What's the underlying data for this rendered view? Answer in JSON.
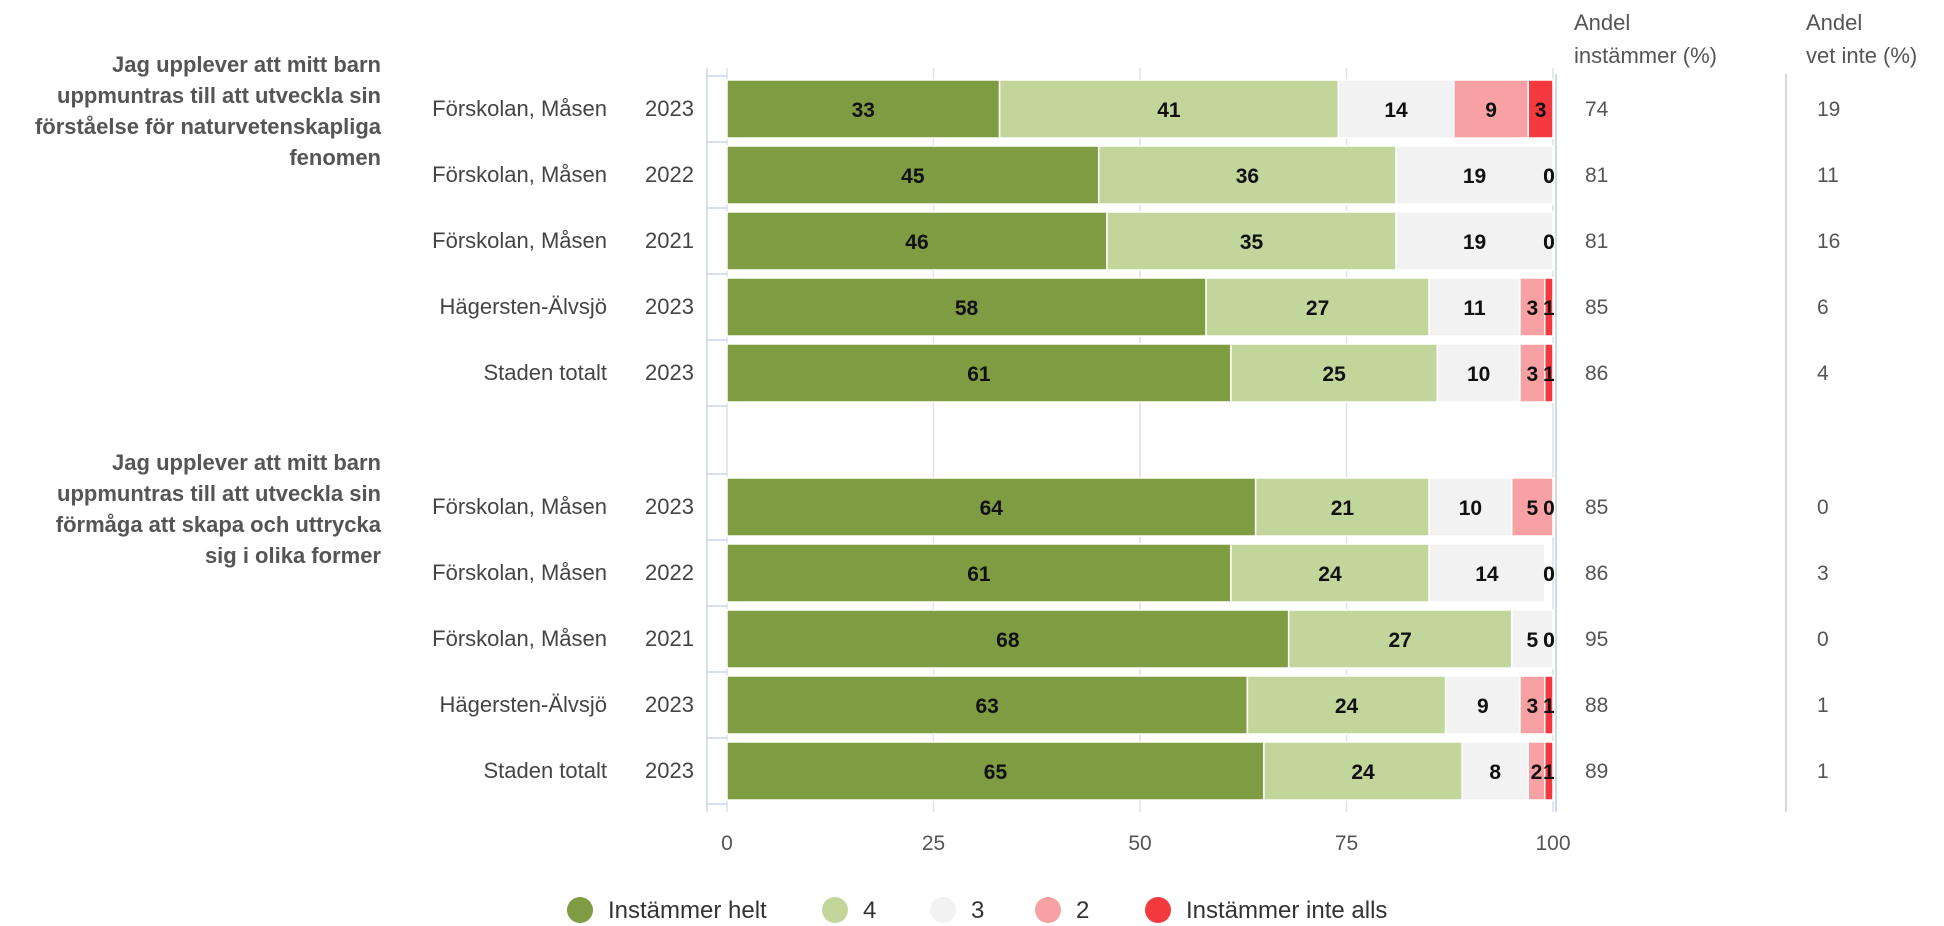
{
  "chart_data": {
    "type": "bar",
    "orientation": "horizontal",
    "stacked": true,
    "xlim": [
      0,
      100
    ],
    "xticks": [
      "0",
      "25",
      "50",
      "75",
      "100"
    ],
    "grid": true,
    "legend_position": "bottom-center",
    "column_headers": {
      "agree_line1": "Andel",
      "agree_line2": "instämmer (%)",
      "dontknow_line1": "Andel",
      "dontknow_line2": "vet inte (%)"
    },
    "series": [
      {
        "name": "Instämmer helt",
        "color": "#7f9c43"
      },
      {
        "name": "4",
        "color": "#c2d69b"
      },
      {
        "name": "3",
        "color": "#f2f2f2"
      },
      {
        "name": "2",
        "color": "#f7a1a4"
      },
      {
        "name": "Instämmer inte alls",
        "color": "#f4393f"
      }
    ],
    "groups": [
      {
        "question_lines": [
          "Jag upplever att mitt barn",
          "uppmuntras till att utveckla sin",
          "förståelse för naturvetenskapliga",
          "fenomen"
        ],
        "rows": [
          {
            "unit": "Förskolan, Måsen",
            "year": "2023",
            "values": [
              33,
              41,
              14,
              9,
              3
            ],
            "agree": "74",
            "dont_know": "19"
          },
          {
            "unit": "Förskolan, Måsen",
            "year": "2022",
            "values": [
              45,
              36,
              19,
              0,
              0
            ],
            "agree": "81",
            "dont_know": "11"
          },
          {
            "unit": "Förskolan, Måsen",
            "year": "2021",
            "values": [
              46,
              35,
              19,
              0,
              0
            ],
            "agree": "81",
            "dont_know": "16"
          },
          {
            "unit": "Hägersten-Älvsjö",
            "year": "2023",
            "values": [
              58,
              27,
              11,
              3,
              1
            ],
            "agree": "85",
            "dont_know": "6"
          },
          {
            "unit": "Staden totalt",
            "year": "2023",
            "values": [
              61,
              25,
              10,
              3,
              1
            ],
            "agree": "86",
            "dont_know": "4"
          }
        ]
      },
      {
        "question_lines": [
          "Jag upplever att mitt barn",
          "uppmuntras till att utveckla sin",
          "förmåga att skapa och uttrycka",
          "sig i olika former"
        ],
        "rows": [
          {
            "unit": "Förskolan, Måsen",
            "year": "2023",
            "values": [
              64,
              21,
              10,
              5,
              0
            ],
            "agree": "85",
            "dont_know": "0"
          },
          {
            "unit": "Förskolan, Måsen",
            "year": "2022",
            "values": [
              61,
              24,
              14,
              0,
              0
            ],
            "agree": "86",
            "dont_know": "3"
          },
          {
            "unit": "Förskolan, Måsen",
            "year": "2021",
            "values": [
              68,
              27,
              5,
              0,
              0
            ],
            "agree": "95",
            "dont_know": "0"
          },
          {
            "unit": "Hägersten-Älvsjö",
            "year": "2023",
            "values": [
              63,
              24,
              9,
              3,
              1
            ],
            "agree": "88",
            "dont_know": "1"
          },
          {
            "unit": "Staden totalt",
            "year": "2023",
            "values": [
              65,
              24,
              8,
              2,
              1
            ],
            "agree": "89",
            "dont_know": "1"
          }
        ]
      }
    ]
  }
}
